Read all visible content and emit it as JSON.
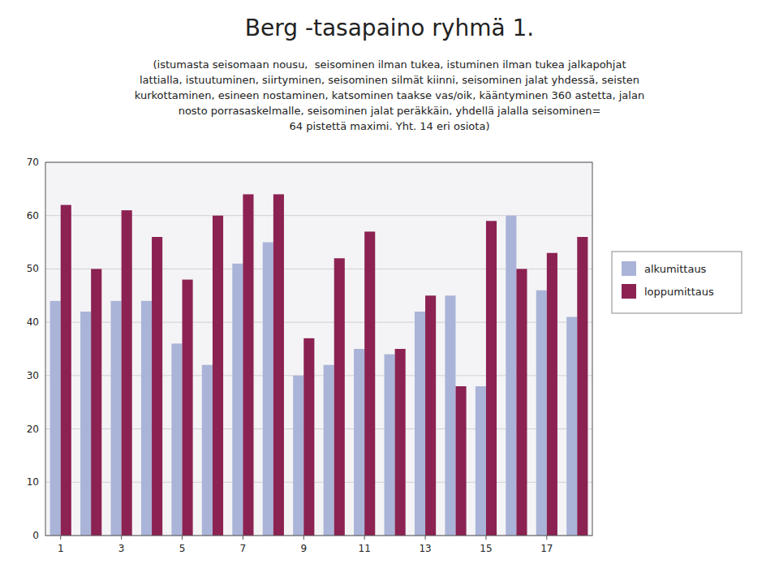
{
  "chart_data": {
    "type": "bar",
    "title": "Berg -tasapaino ryhmä 1.",
    "subtitle": [
      "(istumasta seisomaan nousu,  seisominen ilman tukea, istuminen ilman tukea jalkapohjat",
      "lattialla, istuutuminen, siirtyminen, seisominen silmät kiinni, seisominen jalat yhdessä, seisten",
      "kurkottaminen, esineen nostaminen, katsominen taakse vas/oik, kääntyminen 360 astetta, jalan",
      "nosto porrasaskelmalle, seisominen jalat peräkkäin, yhdellä jalalla seisominen=",
      "64 pistettä maximi. Yht. 14 eri osiota)"
    ],
    "categories": [
      "1",
      null,
      "3",
      null,
      "5",
      null,
      "7",
      null,
      "9",
      null,
      "11",
      null,
      "13",
      null,
      "15",
      null,
      "17",
      null
    ],
    "series": [
      {
        "name": "alkumittaus",
        "color": "#aab4d8",
        "values": [
          44,
          42,
          44,
          44,
          36,
          32,
          51,
          55,
          30,
          32,
          35,
          34,
          42,
          45,
          28,
          60,
          46,
          41
        ]
      },
      {
        "name": "loppumittaus",
        "color": "#8b2252",
        "values": [
          62,
          50,
          61,
          56,
          48,
          60,
          64,
          64,
          37,
          52,
          57,
          35,
          45,
          28,
          59,
          50,
          53,
          56
        ]
      }
    ],
    "ylim": [
      0,
      70
    ],
    "yticks": [
      0,
      10,
      20,
      30,
      40,
      50,
      60,
      70
    ],
    "grid": true,
    "legend": "right"
  }
}
